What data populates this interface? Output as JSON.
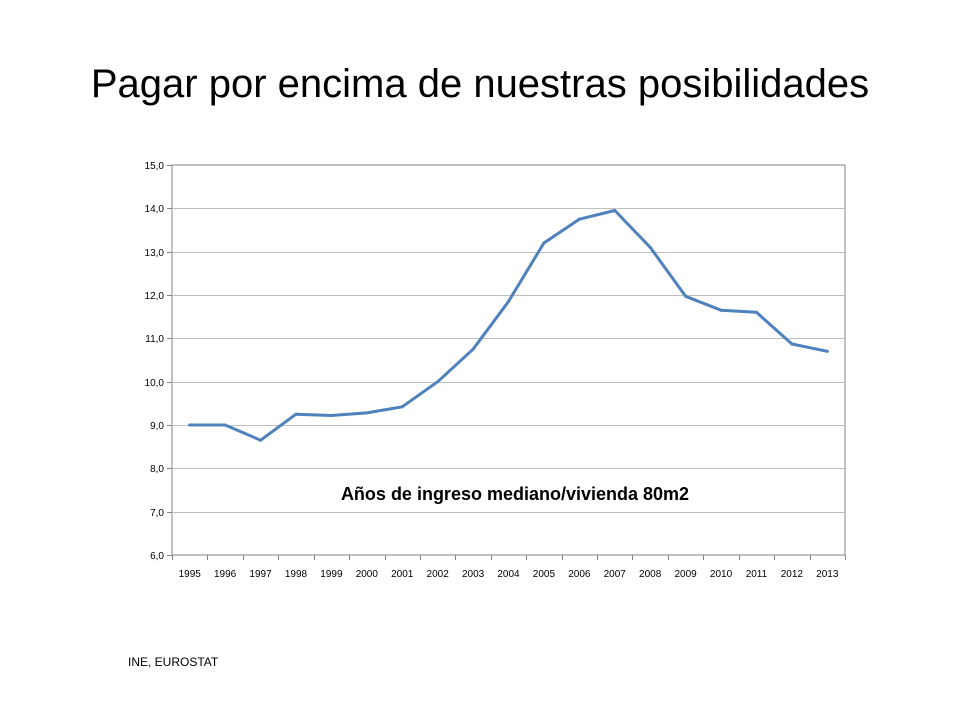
{
  "slide": {
    "title": "Pagar por encima de nuestras posibilidades",
    "source": "INE, EUROSTAT"
  },
  "chart_data": {
    "type": "line",
    "title": "",
    "annotation": "Años de ingreso mediano/vivienda 80m2",
    "xlabel": "",
    "ylabel": "",
    "categories": [
      "1995",
      "1996",
      "1997",
      "1998",
      "1999",
      "2000",
      "2001",
      "2002",
      "2003",
      "2004",
      "2005",
      "2006",
      "2007",
      "2008",
      "2009",
      "2010",
      "2011",
      "2012",
      "2013"
    ],
    "series": [
      {
        "values": [
          9.0,
          9.0,
          8.65,
          9.25,
          9.22,
          9.28,
          9.42,
          10.0,
          10.75,
          11.85,
          13.2,
          13.75,
          13.95,
          13.1,
          11.97,
          11.65,
          11.6,
          10.87,
          10.7
        ],
        "color": "#4f81bd"
      }
    ],
    "ylim": [
      6.0,
      15.0
    ],
    "yticks": [
      "6,0",
      "7,0",
      "8,0",
      "9,0",
      "10,0",
      "11,0",
      "12,0",
      "13,0",
      "14,0",
      "15,0"
    ],
    "grid": true,
    "legend": "none",
    "gridline_color": "#bfbfbf",
    "axis_color": "#868686"
  }
}
